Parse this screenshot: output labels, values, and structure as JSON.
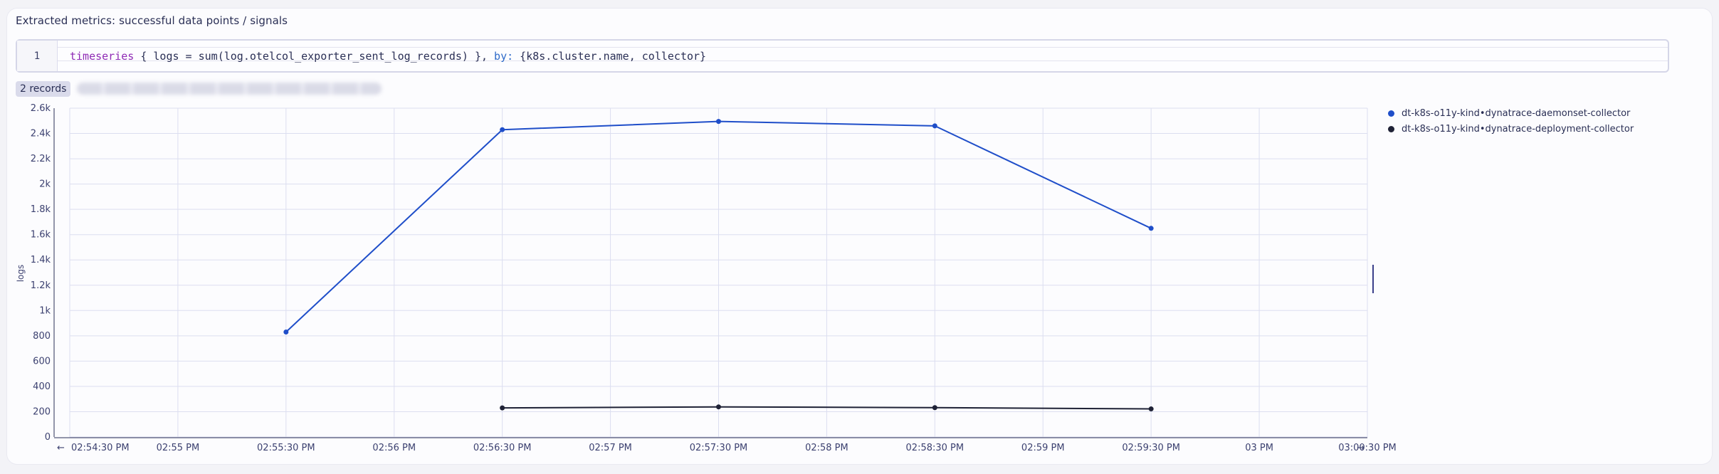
{
  "panel": {
    "title": "Extracted metrics: successful data points / signals",
    "records_label": "2 records"
  },
  "editor": {
    "line_number": "1",
    "tokens": {
      "kw": "timeseries",
      "body": " { logs = sum(log.otelcol_exporter_sent_log_records) }, ",
      "by": "by:",
      "tail": " {k8s.cluster.name, collector}"
    }
  },
  "colors": {
    "series1": "#1f4ec9",
    "series2": "#1f2236",
    "grid": "#dcdef0",
    "axis": "#2a2f55"
  },
  "icons": {
    "left": "arrow-left-icon",
    "right": "arrow-right-icon"
  },
  "chart_data": {
    "type": "line",
    "title": "",
    "ylabel": "logs",
    "xlabel": "",
    "ylim": [
      0,
      2600
    ],
    "yticks": [
      0,
      200,
      400,
      600,
      800,
      1000,
      1200,
      1400,
      1600,
      1800,
      2000,
      2200,
      2400,
      2600
    ],
    "ytick_labels": [
      "0",
      "200",
      "400",
      "600",
      "800",
      "1k",
      "1.2k",
      "1.4k",
      "1.6k",
      "1.8k",
      "2k",
      "2.2k",
      "2.4k",
      "2.6k"
    ],
    "xlim": [
      "02:54:30 PM",
      "03:00:30 PM"
    ],
    "x_ticks": [
      "02:54:30 PM",
      "02:55 PM",
      "02:55:30 PM",
      "02:56 PM",
      "02:56:30 PM",
      "02:57 PM",
      "02:57:30 PM",
      "02:58 PM",
      "02:58:30 PM",
      "02:59 PM",
      "02:59:30 PM",
      "03 PM",
      "03:00:30 PM"
    ],
    "grid": true,
    "legend": "right",
    "series": [
      {
        "name": "dt-k8s-o11y-kind•dynatrace-daemonset-collector",
        "x": [
          "02:55:30 PM",
          "02:56:30 PM",
          "02:57:30 PM",
          "02:58:30 PM",
          "02:59:30 PM"
        ],
        "values": [
          830,
          2430,
          2495,
          2460,
          1650
        ]
      },
      {
        "name": "dt-k8s-o11y-kind•dynatrace-deployment-collector",
        "x": [
          "02:56:30 PM",
          "02:57:30 PM",
          "02:58:30 PM",
          "02:59:30 PM"
        ],
        "values": [
          230,
          238,
          232,
          222
        ]
      }
    ]
  }
}
